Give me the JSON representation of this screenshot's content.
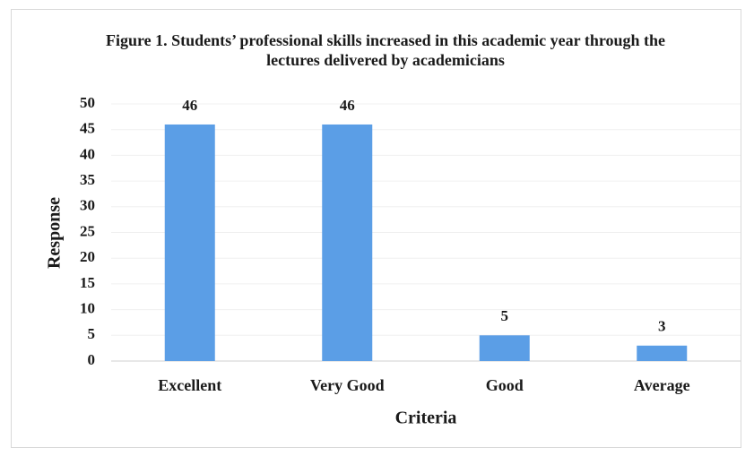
{
  "chart_data": {
    "type": "bar",
    "title": "Figure 1. Students’ professional skills increased in this academic year through the lectures delivered by academicians",
    "x_label": "Criteria",
    "y_label": "Response",
    "categories": [
      "Excellent",
      "Very Good",
      "Good",
      "Average"
    ],
    "values": [
      46,
      46,
      5,
      3
    ],
    "color": "#5b9ee6",
    "ylim": [
      0,
      50
    ],
    "yticks": [
      0,
      5,
      10,
      15,
      20,
      25,
      30,
      35,
      40,
      45,
      50
    ],
    "grid": true
  }
}
